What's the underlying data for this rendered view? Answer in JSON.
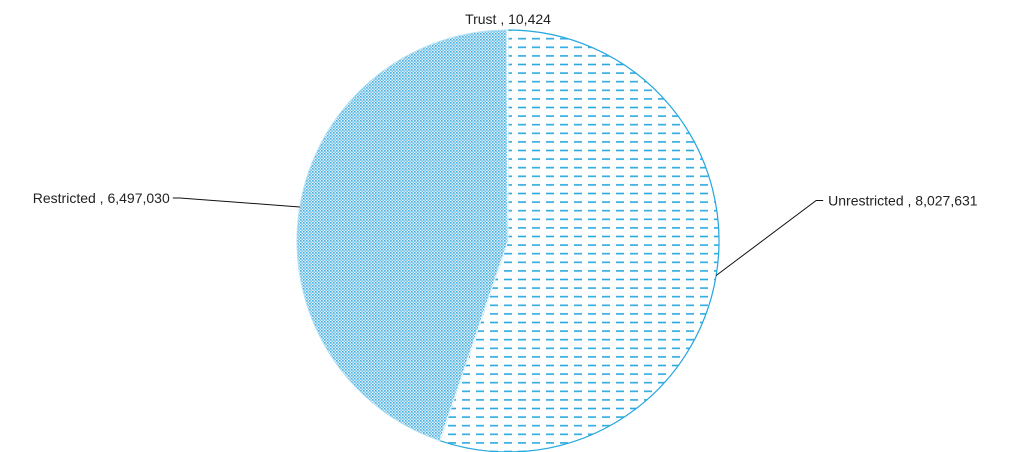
{
  "chart_data": {
    "type": "pie",
    "title": "",
    "slices": [
      {
        "name": "Unrestricted",
        "value": 8027631,
        "label": "Unrestricted  , 8,027,631",
        "pattern": "dashes"
      },
      {
        "name": "Restricted",
        "value": 6497030,
        "label": "Restricted , 6,497,030",
        "pattern": "dots"
      },
      {
        "name": "Trust",
        "value": 10424,
        "label": "Trust , 10,424",
        "pattern": "solid"
      }
    ],
    "legend": "none",
    "colors": {
      "accent": "#29a8e0",
      "dots": "#5bb8e2",
      "outline": "#ffffff"
    }
  }
}
